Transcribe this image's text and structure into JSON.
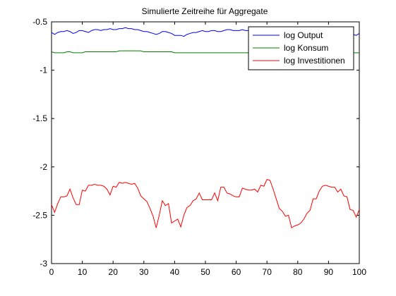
{
  "chart_data": {
    "type": "line",
    "title": "Simulierte Zeitreihe für Aggregate",
    "xlabel": "",
    "ylabel": "",
    "xlim": [
      0,
      100
    ],
    "ylim": [
      -3,
      -0.5
    ],
    "xticks": [
      0,
      10,
      20,
      30,
      40,
      50,
      60,
      70,
      80,
      90,
      100
    ],
    "yticks": [
      -3,
      -2.5,
      -2,
      -1.5,
      -1,
      -0.5
    ],
    "xtick_labels": [
      "0",
      "10",
      "20",
      "30",
      "40",
      "50",
      "60",
      "70",
      "80",
      "90",
      "100"
    ],
    "ytick_labels": [
      "-3",
      "-2.5",
      "-2",
      "-1.5",
      "-1",
      "-0.5"
    ],
    "grid": false,
    "legend_position": "top-right",
    "x": [
      0,
      1,
      2,
      3,
      4,
      5,
      6,
      7,
      8,
      9,
      10,
      11,
      12,
      13,
      14,
      15,
      16,
      17,
      18,
      19,
      20,
      21,
      22,
      23,
      24,
      25,
      26,
      27,
      28,
      29,
      30,
      31,
      32,
      33,
      34,
      35,
      36,
      37,
      38,
      39,
      40,
      41,
      42,
      43,
      44,
      45,
      46,
      47,
      48,
      49,
      50,
      51,
      52,
      53,
      54,
      55,
      56,
      57,
      58,
      59,
      60,
      61,
      62,
      63,
      64,
      65,
      66,
      67,
      68,
      69,
      70,
      71,
      72,
      73,
      74,
      75,
      76,
      77,
      78,
      79,
      80,
      81,
      82,
      83,
      84,
      85,
      86,
      87,
      88,
      89,
      90,
      91,
      92,
      93,
      94,
      95,
      96,
      97,
      98,
      99,
      100
    ],
    "series": [
      {
        "name": "log Output",
        "color": "#0000ff",
        "values": [
          -0.61,
          -0.63,
          -0.61,
          -0.6,
          -0.6,
          -0.59,
          -0.6,
          -0.62,
          -0.61,
          -0.59,
          -0.59,
          -0.6,
          -0.61,
          -0.59,
          -0.58,
          -0.58,
          -0.59,
          -0.58,
          -0.58,
          -0.57,
          -0.58,
          -0.58,
          -0.57,
          -0.57,
          -0.56,
          -0.57,
          -0.57,
          -0.58,
          -0.58,
          -0.59,
          -0.6,
          -0.6,
          -0.61,
          -0.62,
          -0.63,
          -0.62,
          -0.6,
          -0.6,
          -0.61,
          -0.62,
          -0.64,
          -0.64,
          -0.64,
          -0.65,
          -0.63,
          -0.62,
          -0.61,
          -0.61,
          -0.6,
          -0.59,
          -0.6,
          -0.6,
          -0.59,
          -0.59,
          -0.6,
          -0.6,
          -0.59,
          -0.58,
          -0.58,
          -0.59,
          -0.59,
          -0.59,
          -0.58,
          -0.59,
          -0.59,
          -0.6,
          -0.59,
          -0.58,
          -0.58,
          -0.58,
          -0.57,
          -0.58,
          -0.58,
          -0.59,
          -0.61,
          -0.63,
          -0.64,
          -0.64,
          -0.64,
          -0.64,
          -0.64,
          -0.63,
          -0.63,
          -0.62,
          -0.61,
          -0.6,
          -0.59,
          -0.59,
          -0.59,
          -0.58,
          -0.58,
          -0.59,
          -0.6,
          -0.6,
          -0.61,
          -0.61,
          -0.62,
          -0.62,
          -0.63,
          -0.64,
          -0.62
        ]
      },
      {
        "name": "log Konsum",
        "color": "#008000",
        "values": [
          -0.81,
          -0.82,
          -0.82,
          -0.82,
          -0.82,
          -0.81,
          -0.81,
          -0.82,
          -0.82,
          -0.82,
          -0.82,
          -0.81,
          -0.81,
          -0.81,
          -0.81,
          -0.81,
          -0.81,
          -0.81,
          -0.81,
          -0.81,
          -0.81,
          -0.81,
          -0.8,
          -0.8,
          -0.8,
          -0.8,
          -0.8,
          -0.8,
          -0.8,
          -0.8,
          -0.81,
          -0.81,
          -0.81,
          -0.81,
          -0.81,
          -0.81,
          -0.81,
          -0.81,
          -0.81,
          -0.81,
          -0.82,
          -0.82,
          -0.82,
          -0.82,
          -0.82,
          -0.82,
          -0.82,
          -0.82,
          -0.82,
          -0.82,
          -0.82,
          -0.82,
          -0.82,
          -0.82,
          -0.82,
          -0.82,
          -0.82,
          -0.82,
          -0.82,
          -0.82,
          -0.82,
          -0.82,
          -0.82,
          -0.82,
          -0.82,
          -0.82,
          -0.82,
          -0.82,
          -0.82,
          -0.82,
          -0.82,
          -0.82,
          -0.82,
          -0.82,
          -0.82,
          -0.82,
          -0.82,
          -0.82,
          -0.82,
          -0.82,
          -0.82,
          -0.82,
          -0.82,
          -0.82,
          -0.82,
          -0.82,
          -0.82,
          -0.82,
          -0.82,
          -0.82,
          -0.82,
          -0.82,
          -0.82,
          -0.82,
          -0.82,
          -0.82,
          -0.82,
          -0.82,
          -0.82,
          -0.82,
          -0.82
        ]
      },
      {
        "name": "log Investitionen",
        "color": "#ff0000",
        "values": [
          -2.39,
          -2.47,
          -2.38,
          -2.31,
          -2.31,
          -2.3,
          -2.23,
          -2.32,
          -2.39,
          -2.39,
          -2.24,
          -2.25,
          -2.19,
          -2.19,
          -2.18,
          -2.19,
          -2.19,
          -2.2,
          -2.23,
          -2.29,
          -2.2,
          -2.21,
          -2.16,
          -2.17,
          -2.16,
          -2.17,
          -2.18,
          -2.17,
          -2.22,
          -2.3,
          -2.33,
          -2.36,
          -2.43,
          -2.51,
          -2.63,
          -2.5,
          -2.35,
          -2.4,
          -2.38,
          -2.58,
          -2.56,
          -2.54,
          -2.62,
          -2.5,
          -2.42,
          -2.4,
          -2.35,
          -2.33,
          -2.27,
          -2.34,
          -2.34,
          -2.34,
          -2.34,
          -2.27,
          -2.35,
          -2.21,
          -2.21,
          -2.27,
          -2.28,
          -2.3,
          -2.31,
          -2.31,
          -2.22,
          -2.23,
          -2.24,
          -2.24,
          -2.23,
          -2.26,
          -2.19,
          -2.2,
          -2.13,
          -2.14,
          -2.23,
          -2.33,
          -2.43,
          -2.46,
          -2.51,
          -2.5,
          -2.63,
          -2.61,
          -2.6,
          -2.58,
          -2.54,
          -2.48,
          -2.45,
          -2.33,
          -2.33,
          -2.25,
          -2.2,
          -2.19,
          -2.2,
          -2.21,
          -2.21,
          -2.26,
          -2.23,
          -2.3,
          -2.31,
          -2.44,
          -2.45,
          -2.52,
          -2.44
        ]
      }
    ]
  }
}
